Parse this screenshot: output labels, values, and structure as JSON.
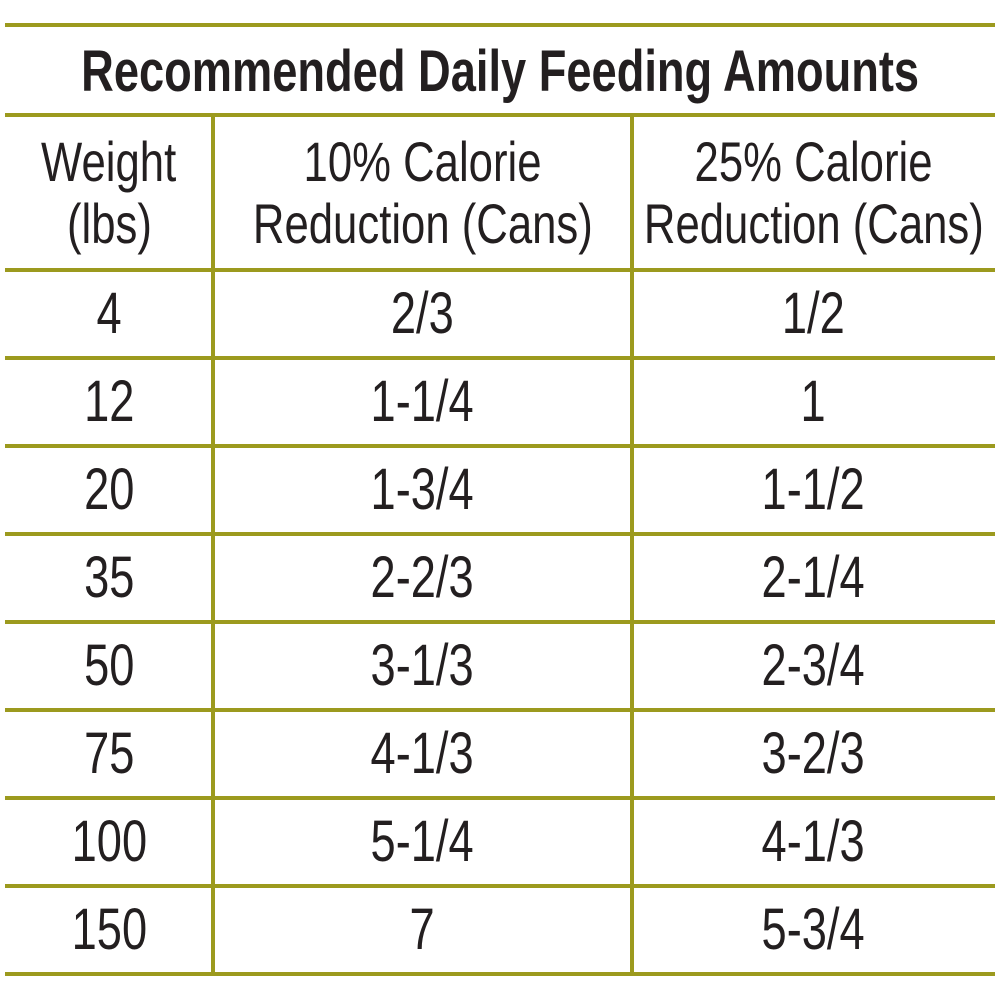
{
  "title": "Recommended Daily Feeding Amounts",
  "table": {
    "headers": [
      [
        "Weight",
        "(lbs)"
      ],
      [
        "10% Calorie",
        "Reduction (Cans)"
      ],
      [
        "25% Calorie",
        "Reduction (Cans)"
      ]
    ],
    "rows": [
      [
        "4",
        "2/3",
        "1/2"
      ],
      [
        "12",
        "1-1/4",
        "1"
      ],
      [
        "20",
        "1-3/4",
        "1-1/2"
      ],
      [
        "35",
        "2-2/3",
        "2-1/4"
      ],
      [
        "50",
        "3-1/3",
        "2-3/4"
      ],
      [
        "75",
        "4-1/3",
        "3-2/3"
      ],
      [
        "100",
        "5-1/4",
        "4-1/3"
      ],
      [
        "150",
        "7",
        "5-3/4"
      ]
    ]
  }
}
